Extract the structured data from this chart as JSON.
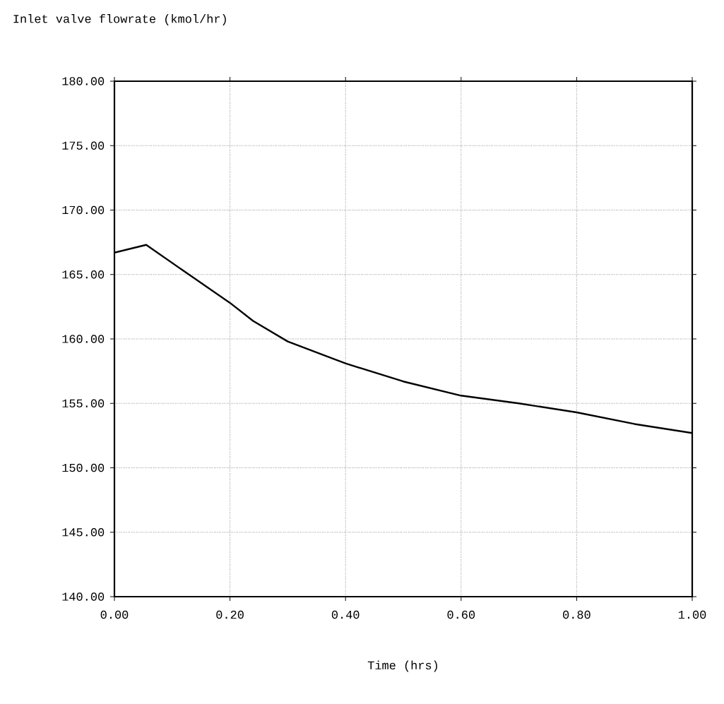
{
  "chart_data": {
    "type": "line",
    "title": "Inlet valve flowrate (kmol/hr)",
    "xlabel": "Time (hrs)",
    "x": [
      0,
      0.055,
      0.132,
      0.2,
      0.24,
      0.3,
      0.4,
      0.5,
      0.6,
      0.7,
      0.8,
      0.9,
      1.0
    ],
    "series": [
      {
        "color": "#000000",
        "values": [
          166.7,
          167.3,
          164.9,
          162.8,
          161.4,
          159.8,
          158.1,
          156.7,
          155.6,
          155.0,
          154.3,
          153.4,
          152.7
        ]
      }
    ],
    "xlim": [
      0,
      1
    ],
    "ylim": [
      140,
      180
    ],
    "xticks": [
      {
        "value": 0,
        "label": "0.00"
      },
      {
        "value": 0.2,
        "label": "0.20"
      },
      {
        "value": 0.4,
        "label": "0.40"
      },
      {
        "value": 0.6,
        "label": "0.60"
      },
      {
        "value": 0.8,
        "label": "0.80"
      },
      {
        "value": 1,
        "label": "1.00"
      }
    ],
    "yticks": [
      {
        "value": 140,
        "label": "140.00"
      },
      {
        "value": 145,
        "label": "145.00"
      },
      {
        "value": 150,
        "label": "150.00"
      },
      {
        "value": 155,
        "label": "155.00"
      },
      {
        "value": 160,
        "label": "160.00"
      },
      {
        "value": 165,
        "label": "165.00"
      },
      {
        "value": 170,
        "label": "170.00"
      },
      {
        "value": 175,
        "label": "175.00"
      },
      {
        "value": 180,
        "label": "180.00"
      }
    ],
    "grid": true,
    "marker": "none",
    "line_style": "solid"
  }
}
